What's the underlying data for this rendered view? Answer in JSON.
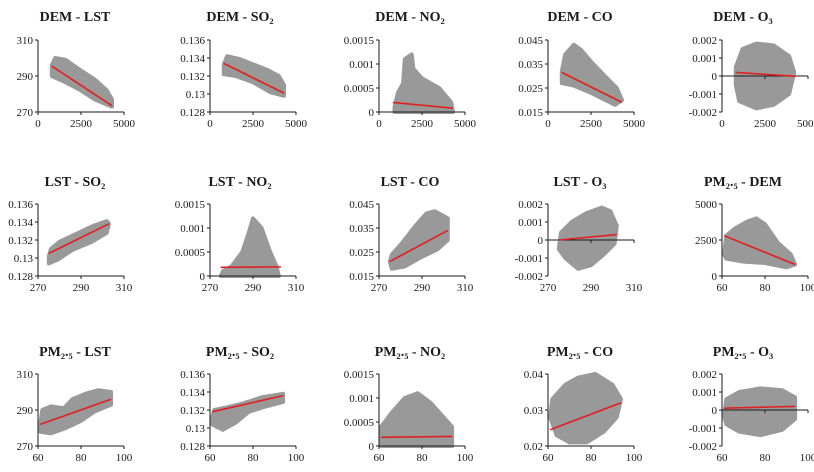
{
  "chart_data": [
    {
      "type": "scatter",
      "title": "DEM - LST",
      "xticks": [
        "0",
        "2500",
        "5000"
      ],
      "yticks": [
        "270",
        "290",
        "310"
      ],
      "xlim": [
        0,
        5000
      ],
      "ylim": [
        270,
        310
      ],
      "cloud": [
        [
          800,
          296
        ],
        [
          1000,
          300
        ],
        [
          1600,
          299
        ],
        [
          2500,
          293
        ],
        [
          3300,
          288
        ],
        [
          4000,
          282
        ],
        [
          4300,
          277
        ],
        [
          4300,
          273
        ],
        [
          3300,
          277
        ],
        [
          2500,
          282
        ],
        [
          1500,
          287
        ],
        [
          800,
          290
        ]
      ],
      "trend": [
        [
          800,
          295.5
        ],
        [
          4300,
          273.5
        ]
      ]
    },
    {
      "type": "scatter",
      "title": "DEM - SO₂",
      "xticks": [
        "0",
        "2500",
        "5000"
      ],
      "yticks": [
        "0.128",
        "0.13",
        "0.132",
        "0.134",
        "0.136"
      ],
      "xlim": [
        0,
        5000
      ],
      "ylim": [
        0.128,
        0.136
      ],
      "cloud": [
        [
          800,
          0.1333
        ],
        [
          1000,
          0.1342
        ],
        [
          1700,
          0.1339
        ],
        [
          2500,
          0.1333
        ],
        [
          3300,
          0.1327
        ],
        [
          4000,
          0.132
        ],
        [
          4300,
          0.131
        ],
        [
          4300,
          0.1298
        ],
        [
          3500,
          0.1302
        ],
        [
          2500,
          0.1313
        ],
        [
          1500,
          0.132
        ],
        [
          800,
          0.1322
        ]
      ],
      "trend": [
        [
          800,
          0.1334
        ],
        [
          4300,
          0.1301
        ]
      ]
    },
    {
      "type": "scatter",
      "title": "DEM - NO₂",
      "xticks": [
        "0",
        "2500",
        "5000"
      ],
      "yticks": [
        "0",
        "0.0005",
        "0.001",
        "0.0015"
      ],
      "xlim": [
        0,
        5000
      ],
      "ylim": [
        0,
        0.0015
      ],
      "cloud": [
        [
          900,
          0.0001
        ],
        [
          1100,
          0.0004
        ],
        [
          1400,
          0.0006
        ],
        [
          1500,
          0.0011
        ],
        [
          1900,
          0.0012
        ],
        [
          2000,
          0.0009
        ],
        [
          2500,
          0.0007
        ],
        [
          3500,
          0.0005
        ],
        [
          4200,
          0.0002
        ],
        [
          4300,
          0
        ],
        [
          900,
          0
        ]
      ],
      "trend": [
        [
          800,
          0.0002
        ],
        [
          4300,
          8e-05
        ]
      ]
    },
    {
      "type": "scatter",
      "title": "DEM - CO",
      "xticks": [
        "0",
        "2500",
        "5000"
      ],
      "yticks": [
        "0.015",
        "0.025",
        "0.035",
        "0.045"
      ],
      "xlim": [
        0,
        5000
      ],
      "ylim": [
        0.015,
        0.045
      ],
      "cloud": [
        [
          800,
          0.032
        ],
        [
          1000,
          0.039
        ],
        [
          1500,
          0.043
        ],
        [
          1900,
          0.041
        ],
        [
          2500,
          0.036
        ],
        [
          3300,
          0.03
        ],
        [
          4000,
          0.025
        ],
        [
          4300,
          0.02
        ],
        [
          3900,
          0.018
        ],
        [
          2500,
          0.023
        ],
        [
          1500,
          0.026
        ],
        [
          800,
          0.027
        ]
      ],
      "trend": [
        [
          800,
          0.0315
        ],
        [
          4300,
          0.019
        ]
      ]
    },
    {
      "type": "scatter",
      "title": "DEM - O₃",
      "xticks": [
        "0",
        "2500",
        "5000"
      ],
      "yticks": [
        "-0.002",
        "-0.001",
        "0",
        "0.001",
        "0.002"
      ],
      "xlim": [
        0,
        5000
      ],
      "ylim": [
        -0.002,
        0.002
      ],
      "cloud": [
        [
          800,
          0.0005
        ],
        [
          1200,
          0.0015
        ],
        [
          2000,
          0.0018
        ],
        [
          3000,
          0.0017
        ],
        [
          3900,
          0.0011
        ],
        [
          4200,
          0.0002
        ],
        [
          3900,
          -0.001
        ],
        [
          3000,
          -0.0016
        ],
        [
          2000,
          -0.0018
        ],
        [
          1000,
          -0.0014
        ],
        [
          800,
          -0.0005
        ]
      ],
      "trend": [
        [
          800,
          0.0002
        ],
        [
          4300,
          -2e-05
        ]
      ]
    },
    {
      "type": "scatter",
      "title": "LST - SO₂",
      "xticks": [
        "270",
        "290",
        "310"
      ],
      "yticks": [
        "0.128",
        "0.13",
        "0.132",
        "0.134",
        "0.136"
      ],
      "xlim": [
        270,
        310
      ],
      "ylim": [
        0.128,
        0.136
      ],
      "cloud": [
        [
          275,
          0.1302
        ],
        [
          276,
          0.131
        ],
        [
          280,
          0.1318
        ],
        [
          288,
          0.1327
        ],
        [
          296,
          0.1336
        ],
        [
          302,
          0.1341
        ],
        [
          303,
          0.1338
        ],
        [
          302,
          0.1328
        ],
        [
          295,
          0.1318
        ],
        [
          286,
          0.1309
        ],
        [
          279,
          0.1298
        ],
        [
          275,
          0.1294
        ]
      ],
      "trend": [
        [
          275,
          0.1305
        ],
        [
          303,
          0.1338
        ]
      ]
    },
    {
      "type": "scatter",
      "title": "LST - NO₂",
      "xticks": [
        "270",
        "290",
        "310"
      ],
      "yticks": [
        "0",
        "0.0005",
        "0.001",
        "0.0015"
      ],
      "xlim": [
        270,
        310
      ],
      "ylim": [
        0,
        0.0015
      ],
      "cloud": [
        [
          275,
          0
        ],
        [
          276,
          0.0001
        ],
        [
          280,
          0.0002
        ],
        [
          285,
          0.0005
        ],
        [
          288,
          0.0009
        ],
        [
          290,
          0.0012
        ],
        [
          294,
          0.001
        ],
        [
          298,
          0.0005
        ],
        [
          301,
          0.0002
        ],
        [
          302,
          0
        ]
      ],
      "trend": [
        [
          275,
          0.00018
        ],
        [
          303,
          0.00019
        ]
      ]
    },
    {
      "type": "scatter",
      "title": "LST - CO",
      "xticks": [
        "270",
        "290",
        "310"
      ],
      "yticks": [
        "0.015",
        "0.025",
        "0.035",
        "0.045"
      ],
      "xlim": [
        270,
        310
      ],
      "ylim": [
        0.015,
        0.045
      ],
      "cloud": [
        [
          275,
          0.021
        ],
        [
          276,
          0.024
        ],
        [
          281,
          0.029
        ],
        [
          287,
          0.036
        ],
        [
          292,
          0.041
        ],
        [
          296,
          0.042
        ],
        [
          302,
          0.039
        ],
        [
          302,
          0.03
        ],
        [
          297,
          0.026
        ],
        [
          290,
          0.023
        ],
        [
          282,
          0.019
        ],
        [
          276,
          0.018
        ]
      ],
      "trend": [
        [
          275,
          0.021
        ],
        [
          302,
          0.034
        ]
      ]
    },
    {
      "type": "scatter",
      "title": "LST - O₃",
      "xticks": [
        "270",
        "290",
        "310"
      ],
      "yticks": [
        "-0.002",
        "-0.001",
        "0",
        "0.001",
        "0.002"
      ],
      "xlim": [
        270,
        310
      ],
      "ylim": [
        -0.002,
        0.002
      ],
      "cloud": [
        [
          275,
          -0.0005
        ],
        [
          276,
          0.0004
        ],
        [
          281,
          0.001
        ],
        [
          288,
          0.0015
        ],
        [
          295,
          0.0018
        ],
        [
          299,
          0.0016
        ],
        [
          302,
          0.0008
        ],
        [
          301,
          -0.0002
        ],
        [
          296,
          -0.0008
        ],
        [
          290,
          -0.0014
        ],
        [
          284,
          -0.0016
        ],
        [
          278,
          -0.001
        ]
      ],
      "trend": [
        [
          275,
          0
        ],
        [
          302,
          0.0003
        ]
      ]
    },
    {
      "type": "scatter",
      "title": "PM₂.₅ - DEM",
      "xticks": [
        "60",
        "80",
        "100"
      ],
      "yticks": [
        "0",
        "2500",
        "5000"
      ],
      "xlim": [
        60,
        100
      ],
      "ylim": [
        0,
        5000
      ],
      "cloud": [
        [
          61,
          1500
        ],
        [
          62,
          2800
        ],
        [
          66,
          3300
        ],
        [
          72,
          3800
        ],
        [
          76,
          4000
        ],
        [
          80,
          3600
        ],
        [
          86,
          2300
        ],
        [
          92,
          1500
        ],
        [
          94,
          800
        ],
        [
          90,
          600
        ],
        [
          80,
          900
        ],
        [
          70,
          1000
        ],
        [
          62,
          1200
        ]
      ],
      "trend": [
        [
          61,
          2800
        ],
        [
          94,
          800
        ]
      ]
    },
    {
      "type": "scatter",
      "title": "PM₂.₅ - LST",
      "xticks": [
        "60",
        "80",
        "100"
      ],
      "yticks": [
        "270",
        "290",
        "310"
      ],
      "xlim": [
        60,
        100
      ],
      "ylim": [
        270,
        310
      ],
      "cloud": [
        [
          61,
          282
        ],
        [
          62,
          290
        ],
        [
          66,
          292
        ],
        [
          72,
          291
        ],
        [
          76,
          296
        ],
        [
          82,
          299
        ],
        [
          88,
          301
        ],
        [
          94,
          300
        ],
        [
          94,
          293
        ],
        [
          86,
          289
        ],
        [
          80,
          284
        ],
        [
          73,
          280
        ],
        [
          66,
          277
        ],
        [
          61,
          278
        ]
      ],
      "trend": [
        [
          61,
          282
        ],
        [
          94,
          296
        ]
      ]
    },
    {
      "type": "scatter",
      "title": "PM₂.₅ - SO₂",
      "xticks": [
        "60",
        "80",
        "100"
      ],
      "yticks": [
        "0.128",
        "0.13",
        "0.132",
        "0.134",
        "0.136"
      ],
      "xlim": [
        60,
        100
      ],
      "ylim": [
        0.128,
        0.136
      ],
      "cloud": [
        [
          61,
          0.1312
        ],
        [
          62,
          0.132
        ],
        [
          68,
          0.1323
        ],
        [
          75,
          0.1327
        ],
        [
          84,
          0.1334
        ],
        [
          94,
          0.1338
        ],
        [
          94,
          0.1329
        ],
        [
          86,
          0.1324
        ],
        [
          78,
          0.1318
        ],
        [
          72,
          0.1306
        ],
        [
          66,
          0.1298
        ],
        [
          61,
          0.1304
        ]
      ],
      "trend": [
        [
          61,
          0.1318
        ],
        [
          94,
          0.1336
        ]
      ]
    },
    {
      "type": "scatter",
      "title": "PM₂.₅ - NO₂",
      "xticks": [
        "60",
        "80",
        "100"
      ],
      "yticks": [
        "0",
        "0.0005",
        "0.001",
        "0.0015"
      ],
      "xlim": [
        60,
        100
      ],
      "ylim": [
        0,
        0.0015
      ],
      "cloud": [
        [
          61,
          0
        ],
        [
          61,
          0.0004
        ],
        [
          66,
          0.0007
        ],
        [
          72,
          0.001
        ],
        [
          78,
          0.0011
        ],
        [
          84,
          0.0009
        ],
        [
          90,
          0.0006
        ],
        [
          94,
          0.0004
        ],
        [
          94,
          0
        ],
        [
          80,
          0
        ],
        [
          70,
          0
        ]
      ],
      "trend": [
        [
          61,
          0.00018
        ],
        [
          94,
          0.0002
        ]
      ]
    },
    {
      "type": "scatter",
      "title": "PM₂.₅ - CO",
      "xticks": [
        "60",
        "80",
        "100"
      ],
      "yticks": [
        "0.02",
        "0.03",
        "0.04"
      ],
      "xlim": [
        60,
        100
      ],
      "ylim": [
        0.02,
        0.04
      ],
      "cloud": [
        [
          61,
          0.028
        ],
        [
          62,
          0.033
        ],
        [
          68,
          0.037
        ],
        [
          74,
          0.039
        ],
        [
          82,
          0.04
        ],
        [
          90,
          0.037
        ],
        [
          94,
          0.033
        ],
        [
          92,
          0.028
        ],
        [
          86,
          0.024
        ],
        [
          78,
          0.021
        ],
        [
          70,
          0.021
        ],
        [
          64,
          0.023
        ]
      ],
      "trend": [
        [
          61,
          0.0245
        ],
        [
          94,
          0.032
        ]
      ]
    },
    {
      "type": "scatter",
      "title": "PM₂.₅ - O₃",
      "xticks": [
        "60",
        "80",
        "100"
      ],
      "yticks": [
        "-0.002",
        "-0.001",
        "0",
        "0.001",
        "0.002"
      ],
      "xlim": [
        60,
        100
      ],
      "ylim": [
        -0.002,
        0.002
      ],
      "cloud": [
        [
          61,
          -0.0003
        ],
        [
          62,
          0.0006
        ],
        [
          68,
          0.001
        ],
        [
          78,
          0.0012
        ],
        [
          88,
          0.0011
        ],
        [
          94,
          0.0007
        ],
        [
          94,
          -0.0005
        ],
        [
          88,
          -0.0011
        ],
        [
          78,
          -0.0014
        ],
        [
          68,
          -0.0012
        ],
        [
          62,
          -0.0008
        ]
      ],
      "trend": [
        [
          61,
          0.0001
        ],
        [
          94,
          0.0002
        ]
      ]
    }
  ]
}
